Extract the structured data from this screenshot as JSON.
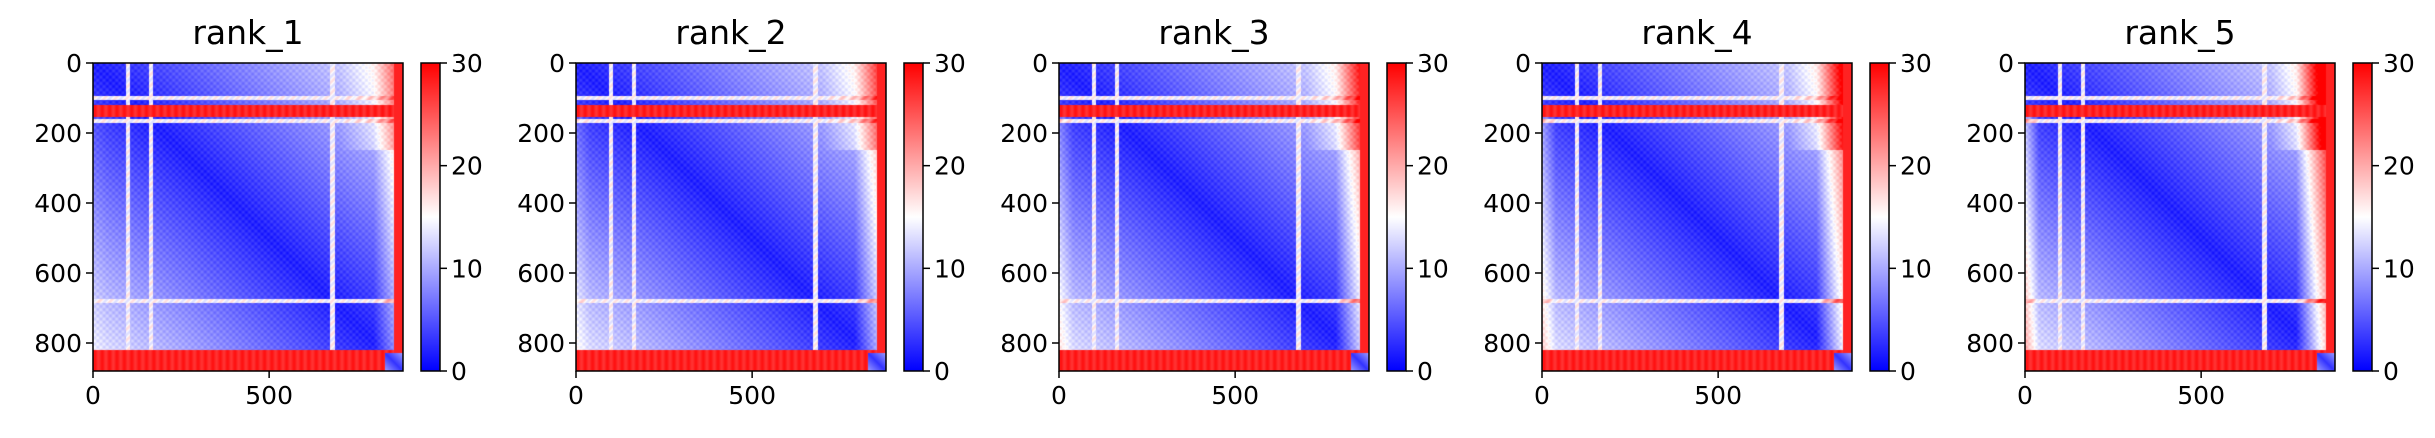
{
  "chart_data": {
    "type": "heatmap",
    "colormap": {
      "name": "bwr",
      "stops": [
        "#0000ff",
        "#ffffff",
        "#ff0000"
      ],
      "vmin": 0,
      "vmax": 30,
      "ticks": [
        "0",
        "10",
        "20",
        "30"
      ]
    },
    "matrix_size": 880,
    "x_ticks": [
      {
        "value": 0,
        "label": "0"
      },
      {
        "value": 500,
        "label": "500"
      }
    ],
    "y_ticks": [
      {
        "value": 0,
        "label": "0"
      },
      {
        "value": 200,
        "label": "200"
      },
      {
        "value": 400,
        "label": "400"
      },
      {
        "value": 600,
        "label": "600"
      },
      {
        "value": 800,
        "label": "800"
      }
    ],
    "features": {
      "high_bands": [
        [
          120,
          155
        ],
        [
          820,
          880
        ]
      ],
      "high_columns": [
        [
          855,
          880
        ]
      ],
      "light_stripes": [
        100,
        165,
        680
      ],
      "diagonal_block_end": 830,
      "bottom_right_block": [
        830,
        880
      ]
    },
    "panels": [
      {
        "title": "rank_1",
        "edge_intensity": 0.55
      },
      {
        "title": "rank_2",
        "edge_intensity": 0.65
      },
      {
        "title": "rank_3",
        "edge_intensity": 0.75
      },
      {
        "title": "rank_4",
        "edge_intensity": 0.85
      },
      {
        "title": "rank_5",
        "edge_intensity": 1.0
      }
    ]
  }
}
